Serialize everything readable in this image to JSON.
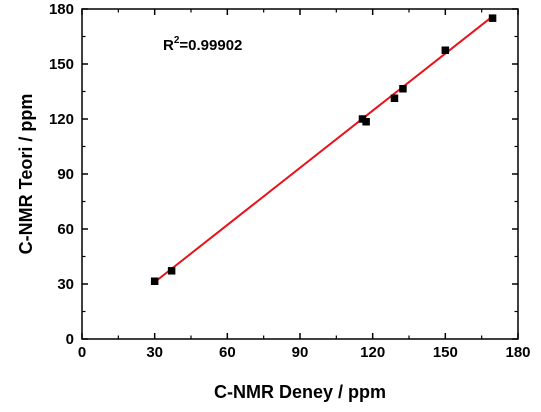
{
  "chart_data": {
    "type": "scatter",
    "xlabel": "C-NMR Deney / ppm",
    "ylabel": "C-NMR Teori / ppm",
    "xlim": [
      0,
      180
    ],
    "ylim": [
      0,
      180
    ],
    "xticks": [
      0,
      30,
      60,
      90,
      120,
      150,
      180
    ],
    "yticks": [
      0,
      30,
      60,
      90,
      120,
      150,
      180
    ],
    "annotation": {
      "base": "R",
      "sup": "2",
      "rest": "=0.99902"
    },
    "marker_color": "#000000",
    "fit_color": "#e8121a",
    "points": [
      {
        "x": 30.0,
        "y": 31.5
      },
      {
        "x": 37.0,
        "y": 37.2
      },
      {
        "x": 115.8,
        "y": 120.0
      },
      {
        "x": 117.3,
        "y": 118.5
      },
      {
        "x": 129.0,
        "y": 131.3
      },
      {
        "x": 132.5,
        "y": 136.5
      },
      {
        "x": 150.0,
        "y": 157.5
      },
      {
        "x": 169.5,
        "y": 175.0
      }
    ],
    "fit_line": {
      "x": [
        29.0,
        170.0
      ],
      "y": [
        30.0,
        176.5
      ]
    }
  }
}
